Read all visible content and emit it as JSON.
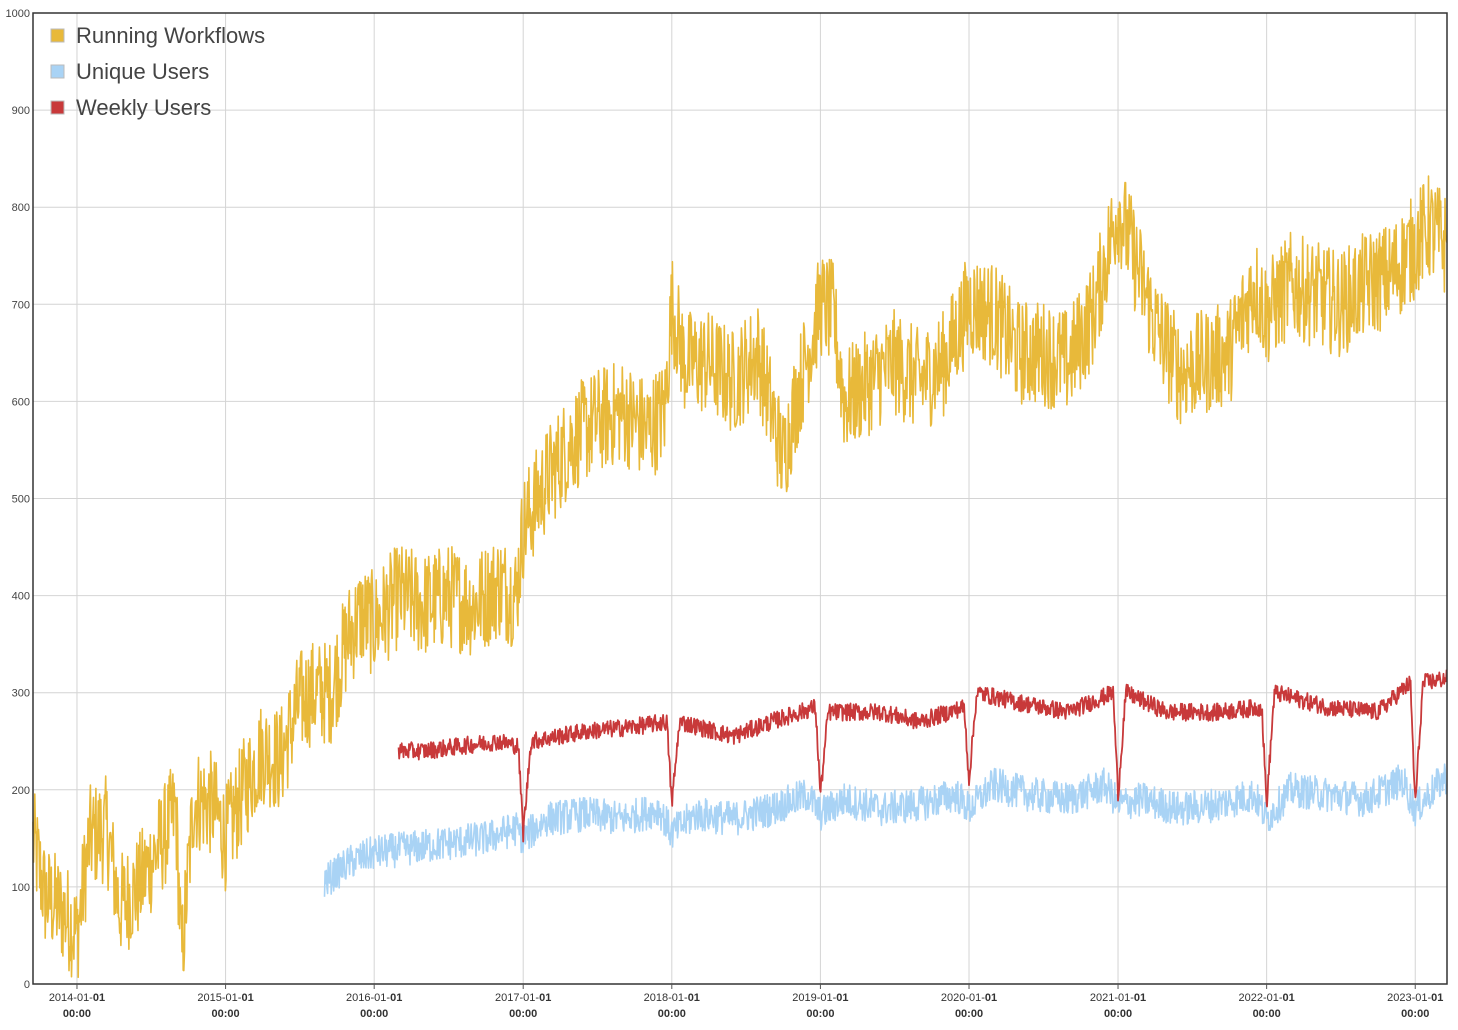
{
  "colors": {
    "running_workflows": "#E8B93A",
    "unique_users": "#A9D3F5",
    "weekly_users": "#C8393A",
    "grid": "#d4d4d4",
    "frame": "#333333"
  },
  "chart_data": {
    "type": "line",
    "title": "",
    "xlabel": "",
    "ylabel": "",
    "grid": true,
    "legend_position": "top-left",
    "ylim": [
      0,
      1000
    ],
    "yticks": [
      0,
      100,
      200,
      300,
      400,
      500,
      600,
      700,
      800,
      900,
      1000
    ],
    "xlim": [
      "2013-09-15",
      "2023-03-20"
    ],
    "xticks": [
      {
        "date": "2014-01-01",
        "label_main": "2014-01-",
        "label_day": "01",
        "label_time": "00:00"
      },
      {
        "date": "2015-01-01",
        "label_main": "2015-01-",
        "label_day": "01",
        "label_time": "00:00"
      },
      {
        "date": "2016-01-01",
        "label_main": "2016-01-",
        "label_day": "01",
        "label_time": "00:00"
      },
      {
        "date": "2017-01-01",
        "label_main": "2017-01-",
        "label_day": "01",
        "label_time": "00:00"
      },
      {
        "date": "2018-01-01",
        "label_main": "2018-01-",
        "label_day": "01",
        "label_time": "00:00"
      },
      {
        "date": "2019-01-01",
        "label_main": "2019-01-",
        "label_day": "01",
        "label_time": "00:00"
      },
      {
        "date": "2020-01-01",
        "label_main": "2020-01-",
        "label_day": "01",
        "label_time": "00:00"
      },
      {
        "date": "2021-01-01",
        "label_main": "2021-01-",
        "label_day": "01",
        "label_time": "00:00"
      },
      {
        "date": "2022-01-01",
        "label_main": "2022-01-",
        "label_day": "01",
        "label_time": "00:00"
      },
      {
        "date": "2023-01-01",
        "label_main": "2023-01-",
        "label_day": "01",
        "label_time": "00:00"
      }
    ],
    "series": [
      {
        "name": "Running Workflows",
        "color": "#E8B93A",
        "points": [
          [
            "2013-09-15",
            150
          ],
          [
            "2013-10-15",
            90
          ],
          [
            "2013-11-15",
            80
          ],
          [
            "2013-12-15",
            65
          ],
          [
            "2014-01-01",
            50
          ],
          [
            "2014-02-01",
            150
          ],
          [
            "2014-03-15",
            160
          ],
          [
            "2014-04-15",
            80
          ],
          [
            "2014-06-01",
            100
          ],
          [
            "2014-07-01",
            125
          ],
          [
            "2014-08-01",
            150
          ],
          [
            "2014-09-01",
            180
          ],
          [
            "2014-09-15",
            25
          ],
          [
            "2014-10-15",
            190
          ],
          [
            "2014-12-01",
            185
          ],
          [
            "2015-01-01",
            150
          ],
          [
            "2015-02-15",
            200
          ],
          [
            "2015-04-01",
            240
          ],
          [
            "2015-05-15",
            230
          ],
          [
            "2015-07-01",
            290
          ],
          [
            "2015-08-01",
            300
          ],
          [
            "2015-09-15",
            300
          ],
          [
            "2015-11-01",
            360
          ],
          [
            "2015-12-01",
            380
          ],
          [
            "2016-01-01",
            370
          ],
          [
            "2016-03-01",
            400
          ],
          [
            "2016-05-01",
            390
          ],
          [
            "2016-07-01",
            400
          ],
          [
            "2016-09-01",
            390
          ],
          [
            "2016-11-01",
            410
          ],
          [
            "2016-12-15",
            400
          ],
          [
            "2017-01-01",
            470
          ],
          [
            "2017-03-01",
            520
          ],
          [
            "2017-05-01",
            560
          ],
          [
            "2017-07-01",
            580
          ],
          [
            "2017-09-01",
            590
          ],
          [
            "2017-11-01",
            570
          ],
          [
            "2017-12-15",
            590
          ],
          [
            "2018-01-01",
            700
          ],
          [
            "2018-02-01",
            640
          ],
          [
            "2018-04-01",
            640
          ],
          [
            "2018-06-01",
            620
          ],
          [
            "2018-08-01",
            650
          ],
          [
            "2018-10-01",
            540
          ],
          [
            "2018-11-01",
            600
          ],
          [
            "2019-01-01",
            700
          ],
          [
            "2019-02-01",
            690
          ],
          [
            "2019-03-01",
            600
          ],
          [
            "2019-05-01",
            620
          ],
          [
            "2019-07-01",
            640
          ],
          [
            "2019-09-01",
            620
          ],
          [
            "2019-11-01",
            640
          ],
          [
            "2020-01-01",
            700
          ],
          [
            "2020-03-01",
            690
          ],
          [
            "2020-05-01",
            650
          ],
          [
            "2020-07-01",
            650
          ],
          [
            "2020-09-01",
            640
          ],
          [
            "2020-11-01",
            690
          ],
          [
            "2021-01-01",
            800
          ],
          [
            "2021-02-01",
            760
          ],
          [
            "2021-04-01",
            680
          ],
          [
            "2021-06-01",
            630
          ],
          [
            "2021-08-01",
            640
          ],
          [
            "2021-10-01",
            650
          ],
          [
            "2021-12-01",
            720
          ],
          [
            "2022-01-01",
            690
          ],
          [
            "2022-03-01",
            720
          ],
          [
            "2022-05-01",
            710
          ],
          [
            "2022-07-01",
            700
          ],
          [
            "2022-09-01",
            720
          ],
          [
            "2022-11-01",
            730
          ],
          [
            "2023-01-01",
            760
          ],
          [
            "2023-02-01",
            780
          ],
          [
            "2023-03-20",
            760
          ]
        ],
        "noise": 55
      },
      {
        "name": "Unique Users",
        "color": "#A9D3F5",
        "points": [
          [
            "2015-09-01",
            105
          ],
          [
            "2015-11-01",
            125
          ],
          [
            "2016-01-01",
            135
          ],
          [
            "2016-04-01",
            140
          ],
          [
            "2016-07-01",
            145
          ],
          [
            "2016-10-01",
            150
          ],
          [
            "2016-12-15",
            160
          ],
          [
            "2017-01-01",
            150
          ],
          [
            "2017-03-01",
            170
          ],
          [
            "2017-06-01",
            175
          ],
          [
            "2017-09-01",
            170
          ],
          [
            "2017-12-01",
            180
          ],
          [
            "2018-01-01",
            155
          ],
          [
            "2018-03-01",
            175
          ],
          [
            "2018-06-01",
            170
          ],
          [
            "2018-09-01",
            180
          ],
          [
            "2018-12-01",
            195
          ],
          [
            "2019-01-01",
            175
          ],
          [
            "2019-03-01",
            190
          ],
          [
            "2019-06-01",
            180
          ],
          [
            "2019-09-01",
            185
          ],
          [
            "2019-12-01",
            195
          ],
          [
            "2020-01-01",
            180
          ],
          [
            "2020-03-01",
            205
          ],
          [
            "2020-06-01",
            195
          ],
          [
            "2020-09-01",
            190
          ],
          [
            "2020-12-01",
            205
          ],
          [
            "2021-01-01",
            185
          ],
          [
            "2021-03-01",
            190
          ],
          [
            "2021-06-01",
            180
          ],
          [
            "2021-09-01",
            185
          ],
          [
            "2021-12-01",
            195
          ],
          [
            "2022-01-01",
            170
          ],
          [
            "2022-03-01",
            200
          ],
          [
            "2022-06-01",
            195
          ],
          [
            "2022-09-01",
            190
          ],
          [
            "2022-12-01",
            210
          ],
          [
            "2023-01-01",
            180
          ],
          [
            "2023-03-20",
            215
          ]
        ],
        "noise": 18
      },
      {
        "name": "Weekly Users",
        "color": "#C8393A",
        "points": [
          [
            "2016-03-01",
            240
          ],
          [
            "2016-05-01",
            240
          ],
          [
            "2016-08-01",
            245
          ],
          [
            "2016-11-01",
            250
          ],
          [
            "2016-12-20",
            245
          ],
          [
            "2017-01-01",
            155
          ],
          [
            "2017-01-20",
            250
          ],
          [
            "2017-06-01",
            260
          ],
          [
            "2017-10-01",
            265
          ],
          [
            "2017-12-20",
            270
          ],
          [
            "2018-01-01",
            185
          ],
          [
            "2018-01-20",
            270
          ],
          [
            "2018-06-01",
            255
          ],
          [
            "2018-09-01",
            270
          ],
          [
            "2018-12-20",
            285
          ],
          [
            "2019-01-01",
            195
          ],
          [
            "2019-01-20",
            280
          ],
          [
            "2019-06-01",
            280
          ],
          [
            "2019-09-01",
            270
          ],
          [
            "2019-12-20",
            285
          ],
          [
            "2020-01-01",
            210
          ],
          [
            "2020-01-20",
            300
          ],
          [
            "2020-05-01",
            290
          ],
          [
            "2020-09-01",
            280
          ],
          [
            "2020-12-20",
            300
          ],
          [
            "2021-01-01",
            195
          ],
          [
            "2021-01-20",
            300
          ],
          [
            "2021-05-01",
            280
          ],
          [
            "2021-09-01",
            280
          ],
          [
            "2021-12-20",
            285
          ],
          [
            "2022-01-01",
            185
          ],
          [
            "2022-01-20",
            300
          ],
          [
            "2022-06-01",
            285
          ],
          [
            "2022-10-01",
            280
          ],
          [
            "2022-12-20",
            310
          ],
          [
            "2023-01-01",
            185
          ],
          [
            "2023-01-20",
            310
          ],
          [
            "2023-03-20",
            315
          ]
        ],
        "noise": 9
      }
    ]
  }
}
